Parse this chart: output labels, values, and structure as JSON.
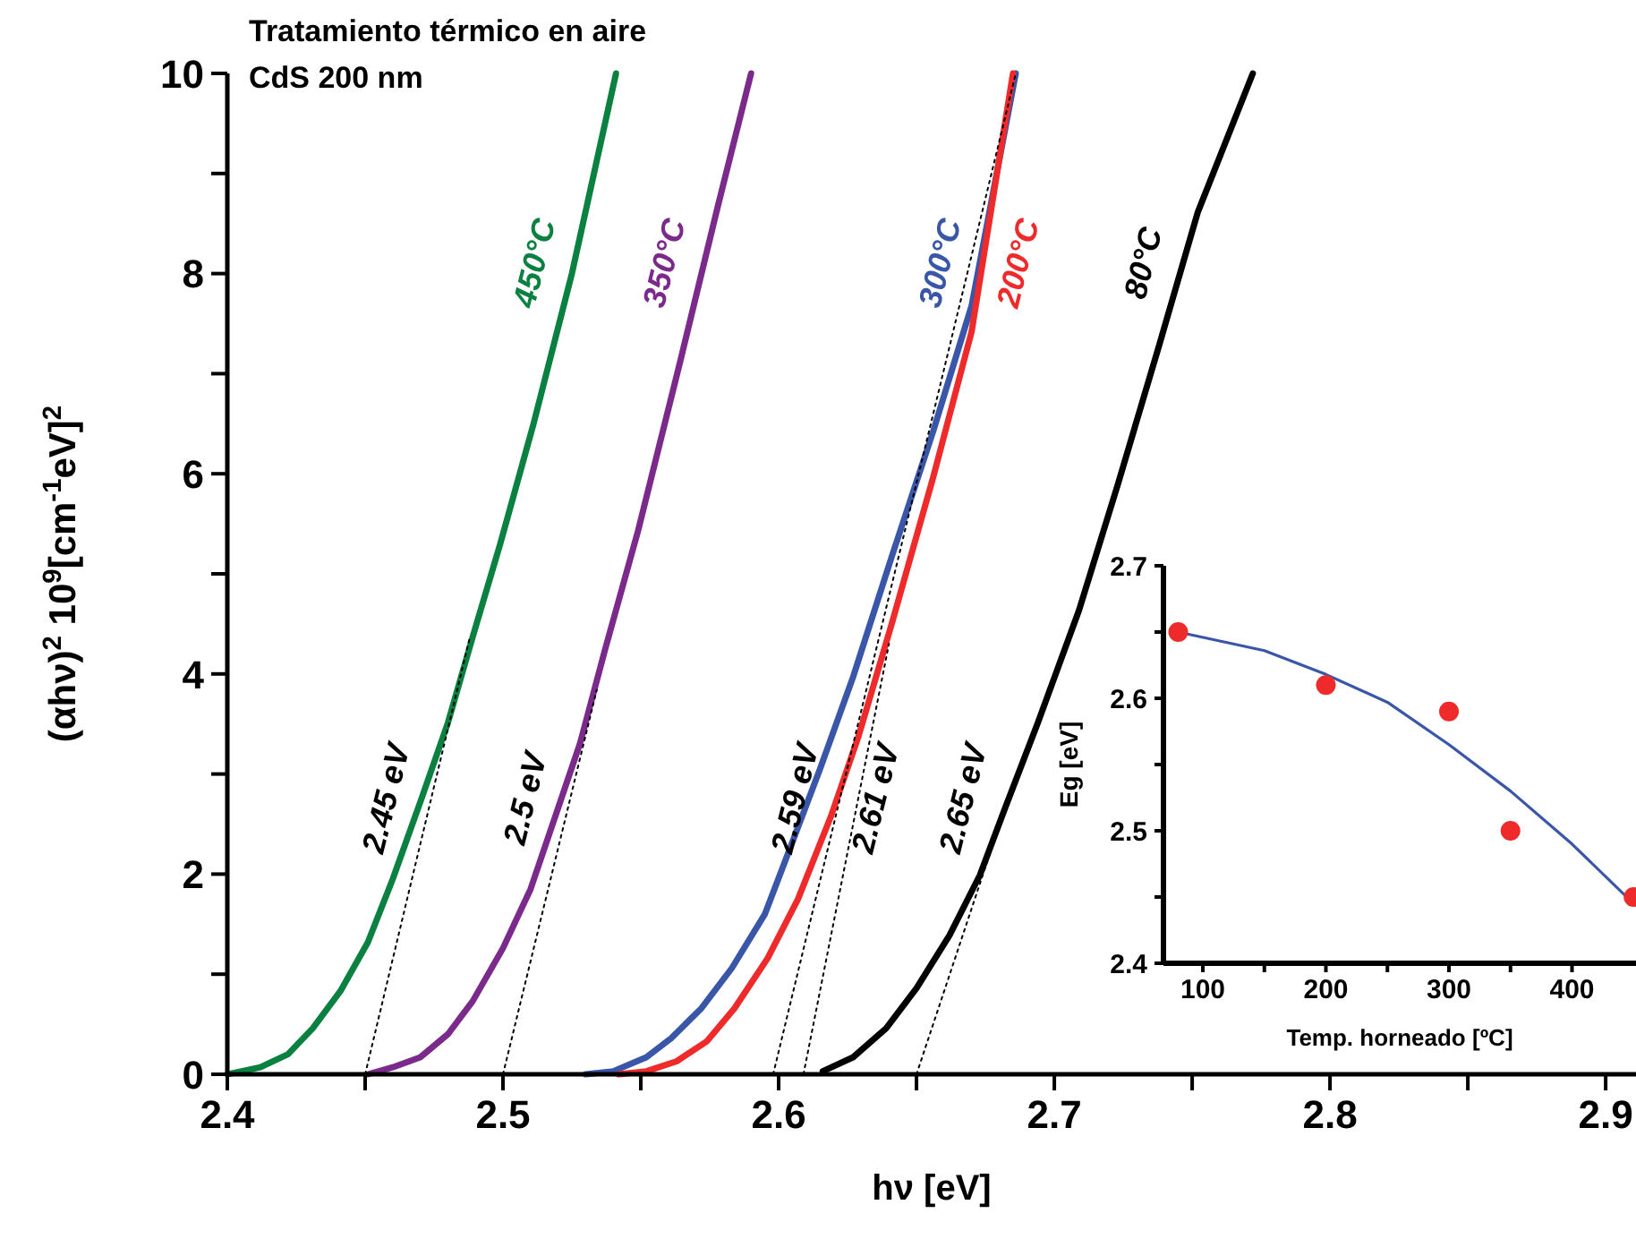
{
  "chart_data": [
    {
      "type": "line",
      "title": "Tratamiento térmico en aire",
      "subtitle": "CdS 200 nm",
      "xlabel": "hν [eV]",
      "ylabel": "(αhν)$^{2}$ 10$^{9}$[cm$^{-1}$eV]$^{2}$",
      "xlim": [
        2.4,
        2.911
      ],
      "ylim": [
        0,
        10
      ],
      "xticks": [
        2.4,
        {
          "value": 2.45,
          "label": null
        },
        2.5,
        {
          "value": 2.55,
          "label": null
        },
        2.6,
        {
          "value": 2.65,
          "label": null
        },
        2.7,
        {
          "value": 2.75,
          "label": null
        },
        2.8,
        {
          "value": 2.85,
          "label": null
        },
        2.9
      ],
      "yticks": [
        0,
        {
          "value": 1,
          "label": null
        },
        2,
        {
          "value": 3,
          "label": null
        },
        4,
        {
          "value": 5,
          "label": null
        },
        6,
        {
          "value": 7,
          "label": null
        },
        8,
        {
          "value": 9,
          "label": null
        },
        10
      ],
      "series": [
        {
          "name": "450°C",
          "color": "#0a8140",
          "x": [
            2.4,
            2.412,
            2.422,
            2.431,
            2.441,
            2.451,
            2.46,
            2.47,
            2.48,
            2.489,
            2.499,
            2.511,
            2.525,
            2.541
          ],
          "values": [
            0,
            0.07,
            0.2,
            0.46,
            0.83,
            1.32,
            1.95,
            2.72,
            3.51,
            4.37,
            5.3,
            6.49,
            8.0,
            10
          ]
        },
        {
          "name": "350°C",
          "color": "#7b2a8c",
          "x": [
            2.451,
            2.46,
            2.47,
            2.48,
            2.489,
            2.5,
            2.51,
            2.519,
            2.528,
            2.537,
            2.549,
            2.564,
            2.578,
            2.59
          ],
          "values": [
            0,
            0.07,
            0.17,
            0.4,
            0.73,
            1.26,
            1.85,
            2.58,
            3.31,
            4.24,
            5.43,
            7.09,
            8.68,
            10
          ]
        },
        {
          "name": "300°C",
          "color": "#3a56a8",
          "x": [
            2.53,
            2.54,
            2.552,
            2.561,
            2.572,
            2.583,
            2.595,
            2.604,
            2.615,
            2.627,
            2.641,
            2.656,
            2.67,
            2.686
          ],
          "values": [
            0,
            0.03,
            0.17,
            0.36,
            0.66,
            1.06,
            1.6,
            2.25,
            3.05,
            3.97,
            5.17,
            6.42,
            7.68,
            10
          ]
        },
        {
          "name": "200°C",
          "color": "#ee2a2a",
          "x": [
            2.542,
            2.552,
            2.563,
            2.574,
            2.584,
            2.596,
            2.607,
            2.619,
            2.629,
            2.641,
            2.656,
            2.67,
            2.685
          ],
          "values": [
            0,
            0.03,
            0.13,
            0.33,
            0.66,
            1.16,
            1.75,
            2.58,
            3.38,
            4.5,
            5.96,
            7.42,
            10
          ]
        },
        {
          "name": "80°C",
          "color": "#000000",
          "x": [
            2.616,
            2.627,
            2.639,
            2.65,
            2.662,
            2.673,
            2.682,
            2.694,
            2.709,
            2.723,
            2.738,
            2.752,
            2.772
          ],
          "values": [
            0.03,
            0.17,
            0.46,
            0.86,
            1.39,
            1.99,
            2.65,
            3.51,
            4.64,
            5.89,
            7.28,
            8.61,
            10
          ]
        },
        {
          "name": "2.45 eV",
          "color": "#000000",
          "line_style": "dotted",
          "x": [
            2.45,
            2.488
          ],
          "values": [
            0,
            4.37
          ]
        },
        {
          "name": "2.5 eV",
          "color": "#000000",
          "line_style": "dotted",
          "x": [
            2.5,
            2.534
          ],
          "values": [
            0,
            3.84
          ]
        },
        {
          "name": "2.59 eV",
          "color": "#000000",
          "line_style": "dotted",
          "x": [
            2.598,
            2.686
          ],
          "values": [
            0,
            10
          ]
        },
        {
          "name": "2.61 eV",
          "color": "#000000",
          "line_style": "dotted",
          "x": [
            2.609,
            2.64
          ],
          "values": [
            0,
            4.3
          ]
        },
        {
          "name": "2.65 eV",
          "color": "#000000",
          "line_style": "dotted",
          "x": [
            2.65,
            2.682
          ],
          "values": [
            0,
            2.65
          ]
        }
      ]
    },
    {
      "type": "scatter",
      "xlabel": "Temp. horneado [ºC]",
      "ylabel": "Eg [eV]",
      "xlim": [
        68,
        452
      ],
      "ylim": [
        2.4,
        2.7
      ],
      "xticks": [
        100,
        {
          "value": 150,
          "label": null
        },
        200,
        {
          "value": 250,
          "label": null
        },
        300,
        {
          "value": 350,
          "label": null
        },
        400
      ],
      "yticks": [
        2.4,
        {
          "value": 2.45,
          "label": null
        },
        2.5,
        {
          "value": 2.55,
          "label": null
        },
        2.6,
        {
          "value": 2.65,
          "label": null
        },
        2.7
      ],
      "series": [
        {
          "type": "line",
          "color": "#3a56a8",
          "x": [
            80,
            150,
            200,
            250,
            300,
            350,
            400,
            450
          ],
          "values": [
            2.65,
            2.636,
            2.618,
            2.597,
            2.565,
            2.53,
            2.49,
            2.445
          ]
        },
        {
          "marker": "circle",
          "color": "#ee2a2a",
          "x": [
            80,
            200,
            300,
            350,
            450
          ],
          "values": [
            2.65,
            2.61,
            2.59,
            2.5,
            2.45
          ]
        }
      ]
    }
  ]
}
